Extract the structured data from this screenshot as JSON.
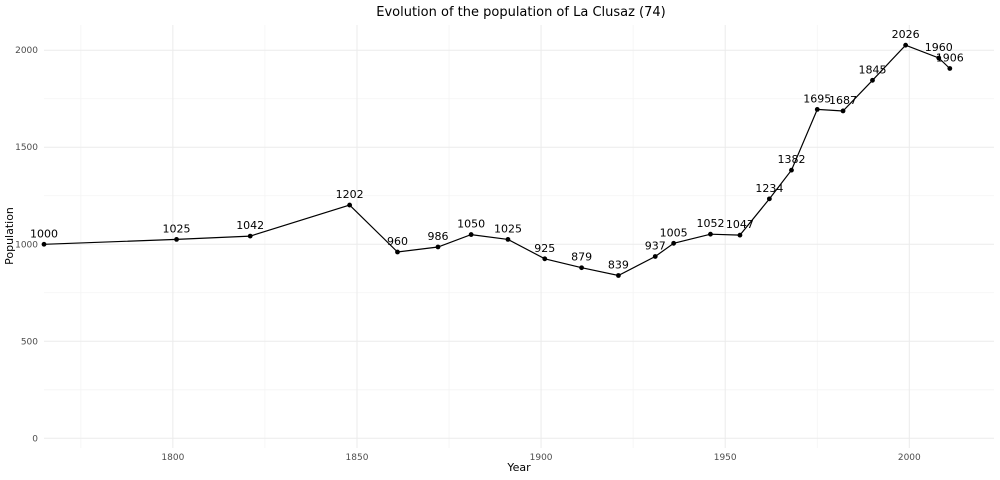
{
  "chart_data": {
    "type": "line",
    "title": "Evolution of the population of La Clusaz (74)",
    "xlabel": "Year",
    "ylabel": "Population",
    "xlim": [
      1765,
      2023
    ],
    "ylim": [
      -50,
      2130
    ],
    "x_ticks": [
      1800,
      1850,
      1900,
      1950,
      2000
    ],
    "x_minor_ticks": [
      1775,
      1825,
      1875,
      1925,
      1975
    ],
    "y_ticks": [
      0,
      500,
      1000,
      1500,
      2000
    ],
    "y_minor_ticks": [
      250,
      750,
      1250,
      1750
    ],
    "grid": true,
    "series": [
      {
        "x": [
          1765,
          1801,
          1821,
          1848,
          1861,
          1872,
          1881,
          1891,
          1901,
          1911,
          1921,
          1931,
          1936,
          1946,
          1954,
          1962,
          1968,
          1975,
          1982,
          1990,
          1999,
          2008,
          2011
        ],
        "y": [
          1000,
          1025,
          1042,
          1202,
          960,
          986,
          1050,
          1025,
          925,
          879,
          839,
          937,
          1005,
          1052,
          1047,
          1234,
          1382,
          1695,
          1687,
          1845,
          2026,
          1960,
          1906
        ],
        "labels": [
          "1000",
          "1025",
          "1042",
          "1202",
          "960",
          "986",
          "1050",
          "1025",
          "925",
          "879",
          "839",
          "937",
          "1005",
          "1052",
          "1047",
          "1234",
          "1382",
          "1695",
          "1687",
          "1845",
          "2026",
          "1960",
          "1906"
        ]
      }
    ]
  }
}
